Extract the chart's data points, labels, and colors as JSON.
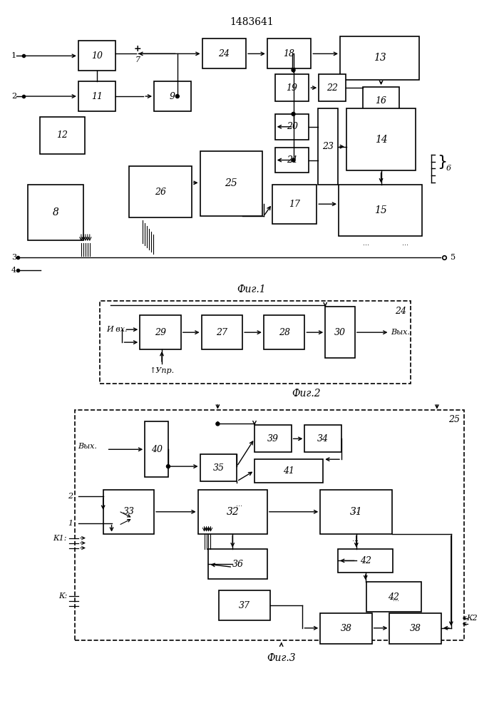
{
  "title": "1483641",
  "bg_color": "#ffffff",
  "line_color": "#000000",
  "fig1_label": "Фиг.1",
  "fig2_label": "Фиг.2",
  "fig3_label": "Фиг.3"
}
